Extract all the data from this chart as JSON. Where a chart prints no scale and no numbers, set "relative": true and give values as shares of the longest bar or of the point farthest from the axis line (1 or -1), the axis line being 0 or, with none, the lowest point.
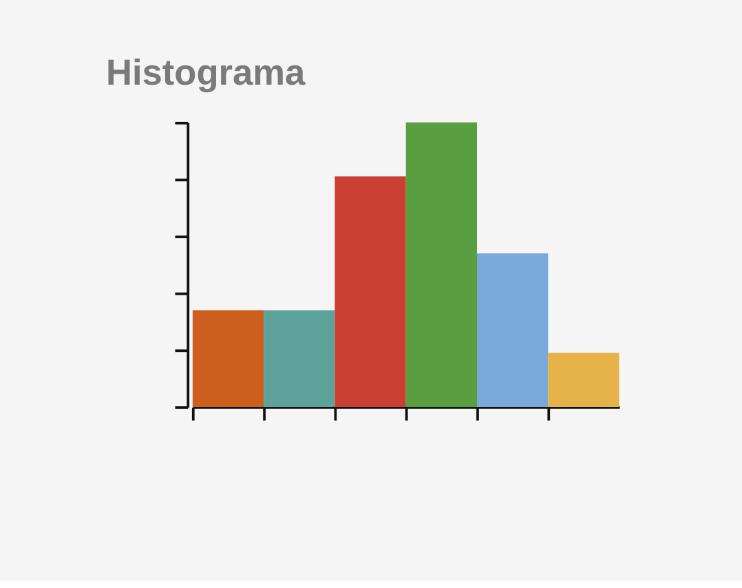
{
  "chart_data": {
    "type": "bar",
    "title": "Histograma",
    "categories": [
      null,
      null,
      null,
      null,
      null,
      null
    ],
    "values": [
      0.34,
      0.34,
      0.81,
      1,
      0.54,
      0.19
    ],
    "colors": [
      "#cc5f1e",
      "#5ea39b",
      "#c94032",
      "#5a9e42",
      "#79a9da",
      "#e5b34a"
    ],
    "relative": true,
    "tick_labels": false,
    "grid": false,
    "legend": false
  }
}
